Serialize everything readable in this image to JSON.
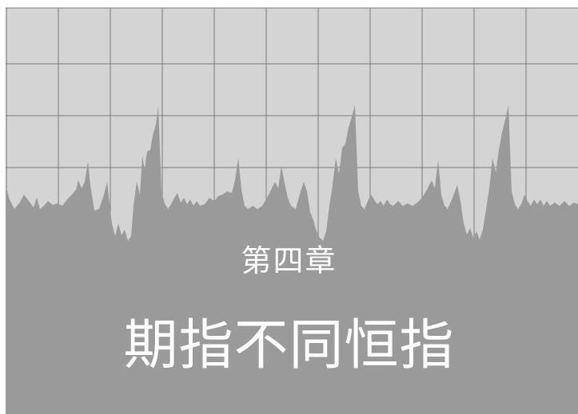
{
  "chapter": {
    "label": "第四章",
    "title": "期指不同恒指"
  },
  "colors": {
    "page_border": "#ffffff",
    "panel_background": "#d4d4d4",
    "grid_lines": "#7a7a7a",
    "area_fill": "#9a9a9a",
    "text": "#ffffff"
  },
  "decoration": {
    "background_graphic": "price-chart-area-silhouette"
  }
}
